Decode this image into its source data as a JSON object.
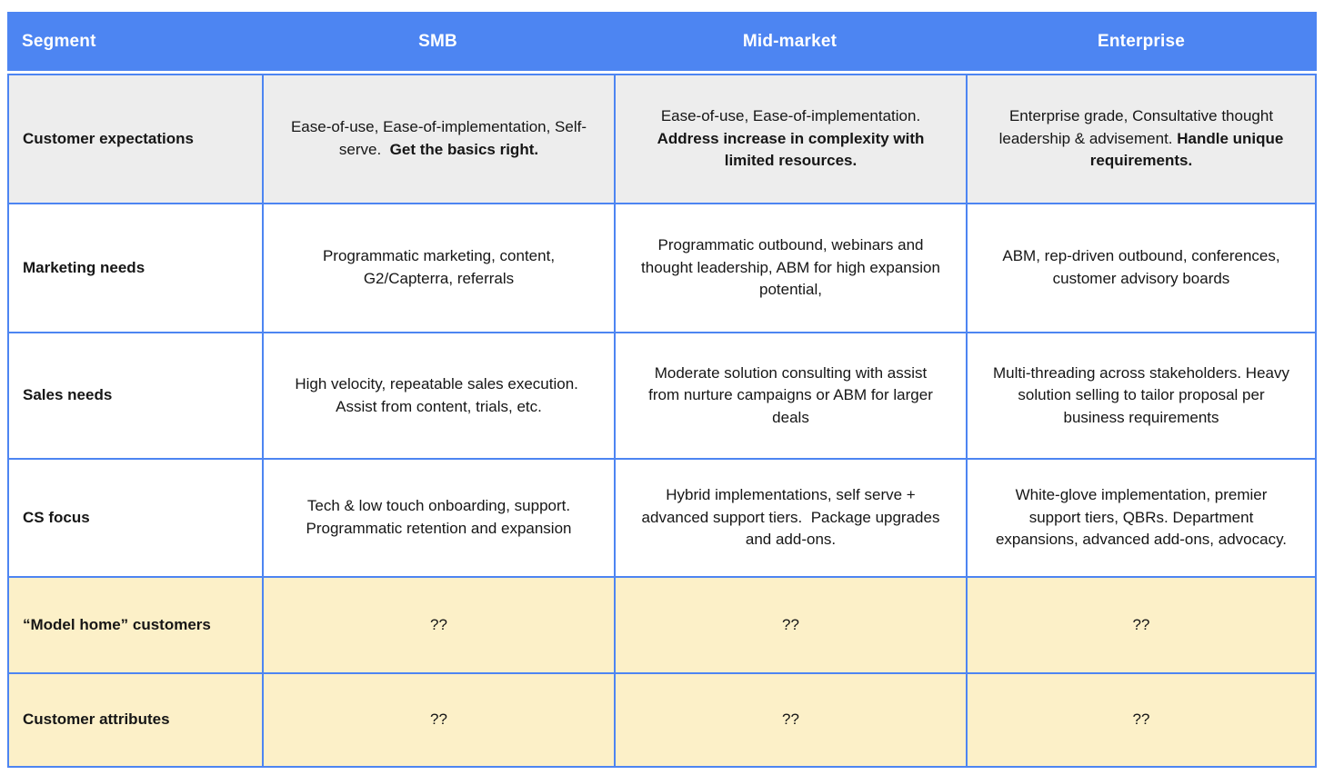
{
  "table": {
    "colors": {
      "header_bg": "#4D85F2",
      "border": "#4D85F2",
      "row_gray_bg": "#EDEDED",
      "row_white_bg": "#FFFFFF",
      "row_yellow_bg": "#FCF0C8",
      "header_text": "#FFFFFF",
      "body_text": "#161616"
    },
    "header": {
      "columns": [
        "Segment",
        "SMB",
        "Mid-market",
        "Enterprise"
      ]
    },
    "rows": [
      {
        "label": "Customer expectations",
        "bg": "gray",
        "cells": [
          [
            {
              "t": "Ease-of-use, Ease-of-implementation, Self-serve.  ",
              "b": false
            },
            {
              "t": "Get the basics right.",
              "b": true
            }
          ],
          [
            {
              "t": "Ease-of-use, Ease-of-implementation. ",
              "b": false
            },
            {
              "t": "Address increase in complexity with limited resources.",
              "b": true
            }
          ],
          [
            {
              "t": "Enterprise grade, Consultative thought leadership & advisement. ",
              "b": false
            },
            {
              "t": "Handle unique requirements.",
              "b": true
            }
          ]
        ]
      },
      {
        "label": "Marketing needs",
        "bg": "white",
        "cells": [
          [
            {
              "t": "Programmatic marketing, content, G2/Capterra, referrals",
              "b": false
            }
          ],
          [
            {
              "t": "Programmatic outbound, webinars and thought leadership, ABM for high expansion potential,",
              "b": false
            }
          ],
          [
            {
              "t": "ABM, rep-driven outbound, conferences, customer advisory boards",
              "b": false
            }
          ]
        ]
      },
      {
        "label": "Sales needs",
        "bg": "white",
        "cells": [
          [
            {
              "t": "High velocity, repeatable sales execution.  Assist from content, trials, etc.",
              "b": false
            }
          ],
          [
            {
              "t": "Moderate solution consulting with assist from nurture campaigns or ABM for larger deals",
              "b": false
            }
          ],
          [
            {
              "t": "Multi-threading across stakeholders. Heavy solution selling to tailor proposal per business requirements",
              "b": false
            }
          ]
        ]
      },
      {
        "label": "CS focus",
        "bg": "white",
        "cells": [
          [
            {
              "t": "Tech & low touch onboarding, support. Programmatic retention and expansion",
              "b": false
            }
          ],
          [
            {
              "t": "Hybrid implementations, self serve + advanced support tiers.  Package upgrades and add-ons.",
              "b": false
            }
          ],
          [
            {
              "t": "White-glove implementation, premier support tiers, QBRs. Department expansions, advanced add-ons, advocacy.",
              "b": false
            }
          ]
        ]
      },
      {
        "label": "“Model home” customers",
        "bg": "yellow",
        "cells": [
          [
            {
              "t": "??",
              "b": false
            }
          ],
          [
            {
              "t": "??",
              "b": false
            }
          ],
          [
            {
              "t": "??",
              "b": false
            }
          ]
        ]
      },
      {
        "label": "Customer attributes",
        "bg": "yellow",
        "cells": [
          [
            {
              "t": "??",
              "b": false
            }
          ],
          [
            {
              "t": "??",
              "b": false
            }
          ],
          [
            {
              "t": "??",
              "b": false
            }
          ]
        ]
      }
    ]
  }
}
